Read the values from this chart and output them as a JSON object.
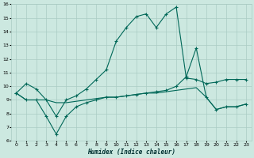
{
  "xlabel": "Humidex (Indice chaleur)",
  "bg_color": "#cce8e0",
  "grid_color": "#aaccc4",
  "line_color": "#006858",
  "xlim": [
    -0.5,
    23.5
  ],
  "ylim": [
    6,
    16
  ],
  "xticks": [
    0,
    1,
    2,
    3,
    4,
    5,
    6,
    7,
    8,
    9,
    10,
    11,
    12,
    13,
    14,
    15,
    16,
    17,
    18,
    19,
    20,
    21,
    22,
    23
  ],
  "yticks": [
    6,
    7,
    8,
    9,
    10,
    11,
    12,
    13,
    14,
    15,
    16
  ],
  "series1_x": [
    0,
    1,
    2,
    3,
    4,
    5,
    6,
    7,
    8,
    9,
    10,
    11,
    12,
    13,
    14,
    15,
    16,
    17,
    18,
    19,
    20,
    21,
    22,
    23
  ],
  "series1_y": [
    9.5,
    10.2,
    9.8,
    9.0,
    7.8,
    9.0,
    9.3,
    9.8,
    10.5,
    11.2,
    13.3,
    14.3,
    15.1,
    15.3,
    14.3,
    15.3,
    15.8,
    10.6,
    10.5,
    10.2,
    10.3,
    10.5,
    10.5,
    10.5
  ],
  "series2_x": [
    0,
    1,
    2,
    3,
    4,
    5,
    6,
    7,
    8,
    9,
    10,
    11,
    12,
    13,
    14,
    15,
    16,
    17,
    18,
    19,
    20,
    21,
    22,
    23
  ],
  "series2_y": [
    9.5,
    9.0,
    9.0,
    7.8,
    6.5,
    7.8,
    8.5,
    8.8,
    9.0,
    9.2,
    9.2,
    9.3,
    9.4,
    9.5,
    9.6,
    9.7,
    10.0,
    10.7,
    12.8,
    9.2,
    8.3,
    8.5,
    8.5,
    8.7
  ],
  "series3_x": [
    0,
    1,
    2,
    3,
    4,
    5,
    6,
    7,
    8,
    9,
    10,
    11,
    12,
    13,
    14,
    15,
    16,
    17,
    18,
    19,
    20,
    21,
    22,
    23
  ],
  "series3_y": [
    9.5,
    9.0,
    9.0,
    9.0,
    8.8,
    8.8,
    8.9,
    9.0,
    9.1,
    9.2,
    9.2,
    9.3,
    9.4,
    9.5,
    9.5,
    9.6,
    9.7,
    9.8,
    9.9,
    9.2,
    8.3,
    8.5,
    8.5,
    8.7
  ]
}
